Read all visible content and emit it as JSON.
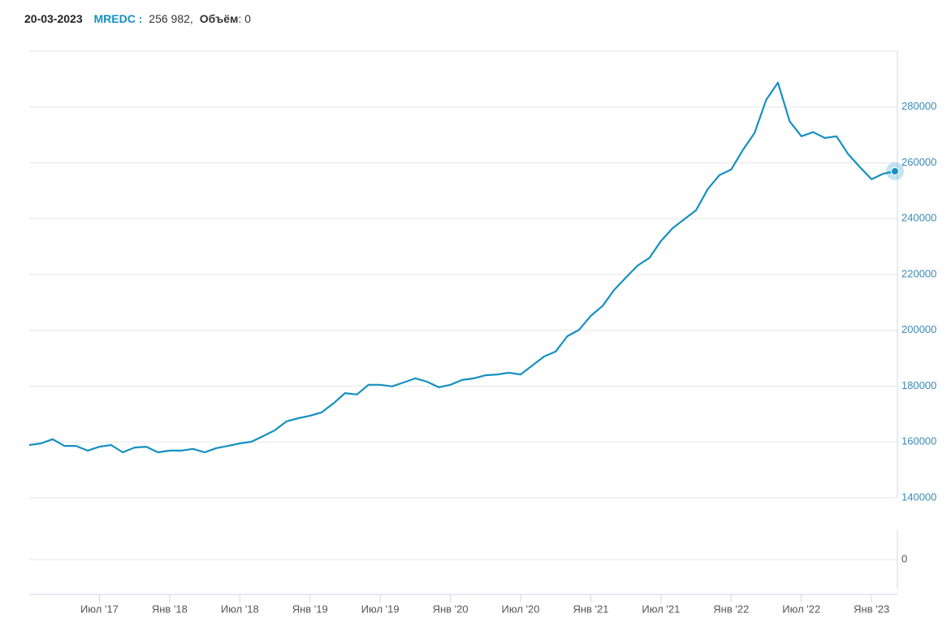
{
  "header": {
    "date": "20-03-2023",
    "symbol": "MREDC :",
    "value": "256 982,",
    "volume_label": "Объём",
    "volume": ": 0"
  },
  "chart_data": [
    {
      "type": "line",
      "x": [
        "2017-01",
        "2017-02",
        "2017-03",
        "2017-04",
        "2017-05",
        "2017-06",
        "2017-07",
        "2017-08",
        "2017-09",
        "2017-10",
        "2017-11",
        "2017-12",
        "2018-01",
        "2018-02",
        "2018-03",
        "2018-04",
        "2018-05",
        "2018-06",
        "2018-07",
        "2018-08",
        "2018-09",
        "2018-10",
        "2018-11",
        "2018-12",
        "2019-01",
        "2019-02",
        "2019-03",
        "2019-04",
        "2019-05",
        "2019-06",
        "2019-07",
        "2019-08",
        "2019-09",
        "2019-10",
        "2019-11",
        "2019-12",
        "2020-01",
        "2020-02",
        "2020-03",
        "2020-04",
        "2020-05",
        "2020-06",
        "2020-07",
        "2020-08",
        "2020-09",
        "2020-10",
        "2020-11",
        "2020-12",
        "2021-01",
        "2021-02",
        "2021-03",
        "2021-04",
        "2021-05",
        "2021-06",
        "2021-07",
        "2021-08",
        "2021-09",
        "2021-10",
        "2021-11",
        "2021-12",
        "2022-01",
        "2022-02",
        "2022-03",
        "2022-04",
        "2022-05",
        "2022-06",
        "2022-07",
        "2022-08",
        "2022-09",
        "2022-10",
        "2022-11",
        "2022-12",
        "2023-01",
        "2023-02",
        "2023-03"
      ],
      "series": [
        {
          "color": "#1590c2",
          "values": [
            158900,
            159500,
            161000,
            158600,
            158600,
            156900,
            158300,
            158900,
            156300,
            158000,
            158300,
            156300,
            156900,
            156900,
            157500,
            156300,
            157800,
            158600,
            159500,
            160100,
            162100,
            164200,
            167400,
            168500,
            169400,
            170600,
            173800,
            177500,
            177000,
            180500,
            180500,
            179900,
            181300,
            182800,
            181600,
            179600,
            180500,
            182200,
            182800,
            183900,
            184200,
            184800,
            184200,
            187400,
            190600,
            192400,
            197900,
            200200,
            205200,
            208700,
            214500,
            218900,
            223200,
            225900,
            232000,
            236600,
            239800,
            243000,
            250600,
            255600,
            257600,
            264600,
            270700,
            282600,
            288700,
            274800,
            269500,
            271000,
            268900,
            269500,
            263100,
            258500,
            254100,
            256100,
            256982
          ]
        }
      ],
      "xlim": [
        "2017-01",
        "2023-03"
      ],
      "xticks": [
        {
          "value": "2017-07",
          "label": "Июл '17"
        },
        {
          "value": "2018-01",
          "label": "Янв '18"
        },
        {
          "value": "2018-07",
          "label": "Июл '18"
        },
        {
          "value": "2019-01",
          "label": "Янв '19"
        },
        {
          "value": "2019-07",
          "label": "Июл '19"
        },
        {
          "value": "2020-01",
          "label": "Янв '20"
        },
        {
          "value": "2020-07",
          "label": "Июл '20"
        },
        {
          "value": "2021-01",
          "label": "Янв '21"
        },
        {
          "value": "2021-07",
          "label": "Июл '21"
        },
        {
          "value": "2022-01",
          "label": "Янв '22"
        },
        {
          "value": "2022-07",
          "label": "Июл '22"
        },
        {
          "value": "2023-01",
          "label": "Янв '23"
        }
      ],
      "ylim": [
        140000,
        300000
      ],
      "yticks": [
        140000,
        160000,
        180000,
        200000,
        220000,
        240000,
        260000,
        280000
      ],
      "grid": true
    },
    {
      "type": "bar",
      "yticks": [
        0
      ],
      "grid": true
    }
  ]
}
